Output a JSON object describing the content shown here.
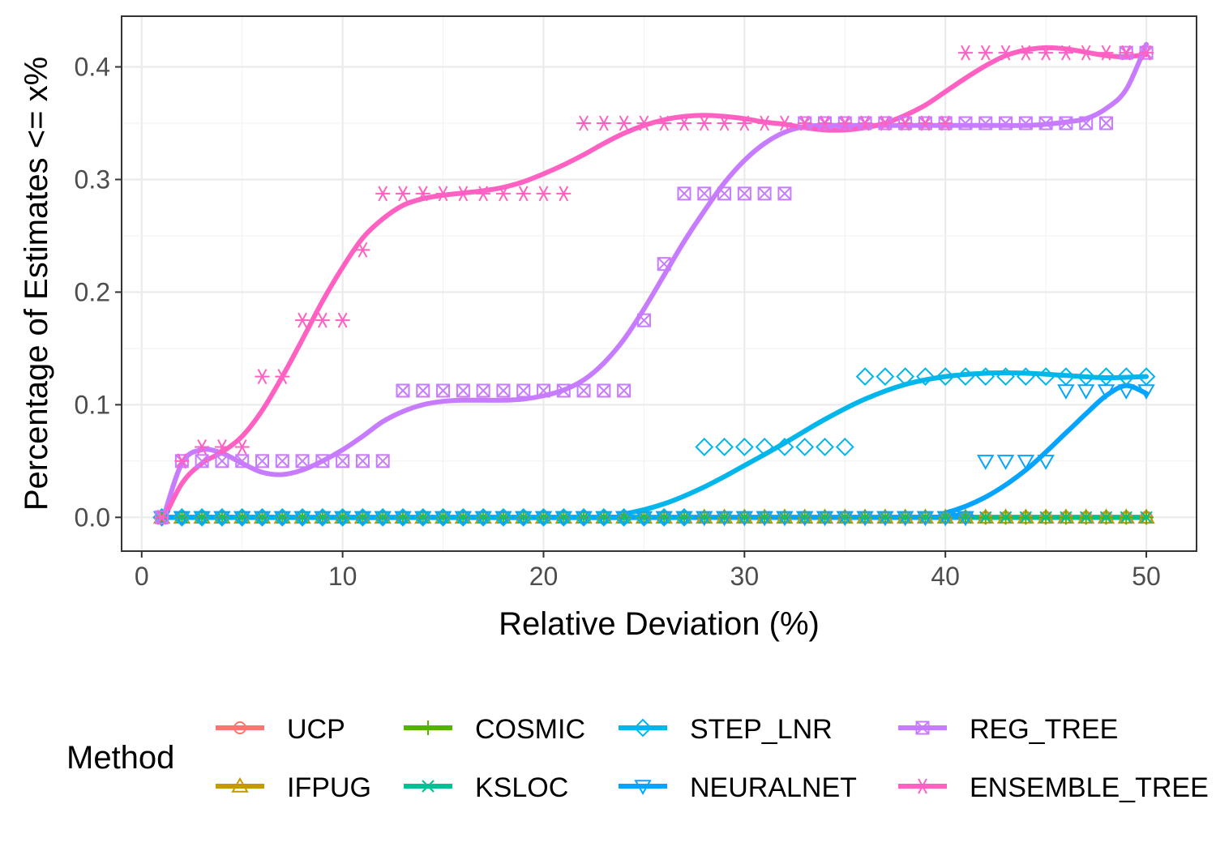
{
  "chart_data": {
    "type": "line",
    "xlabel": "Relative Deviation (%)",
    "ylabel": "Percentage of Estimates <= x%",
    "xlim": [
      -1,
      52.5
    ],
    "ylim": [
      -0.03,
      0.445
    ],
    "x_ticks": [
      0,
      10,
      20,
      30,
      40,
      50
    ],
    "x_tick_labels": [
      "0",
      "10",
      "20",
      "30",
      "40",
      "50"
    ],
    "y_ticks": [
      0.0,
      0.1,
      0.2,
      0.3,
      0.4
    ],
    "y_tick_labels": [
      "0.0",
      "0.1",
      "0.2",
      "0.3",
      "0.4"
    ],
    "grid": true,
    "legend": {
      "title": "Method",
      "position": "bottom"
    },
    "series": [
      {
        "name": "UCP",
        "color": "#F8766D",
        "marker": "circle",
        "points": [
          [
            1,
            0
          ],
          [
            50,
            0
          ]
        ],
        "fill_zero_range": [
          1,
          50
        ],
        "smooth": [
          [
            1,
            0
          ],
          [
            50,
            0
          ]
        ]
      },
      {
        "name": "IFPUG",
        "color": "#C49A00",
        "marker": "triangle-up",
        "points": [],
        "fill_zero_range": [
          1,
          50
        ],
        "smooth": [
          [
            1,
            0
          ],
          [
            50,
            0
          ]
        ]
      },
      {
        "name": "COSMIC",
        "color": "#53B400",
        "marker": "plus",
        "points": [],
        "fill_zero_range": [
          1,
          50
        ],
        "smooth": [
          [
            1,
            0
          ],
          [
            50,
            0
          ]
        ]
      },
      {
        "name": "KSLOC",
        "color": "#00C094",
        "marker": "cross",
        "points": [],
        "fill_zero_range": [
          1,
          50
        ],
        "smooth": [
          [
            1,
            0
          ],
          [
            50,
            0
          ]
        ]
      },
      {
        "name": "STEP_LNR",
        "color": "#00B6EB",
        "marker": "diamond",
        "points": [
          [
            28,
            0.0625
          ],
          [
            29,
            0.0625
          ],
          [
            30,
            0.0625
          ],
          [
            31,
            0.0625
          ],
          [
            32,
            0.0625
          ],
          [
            33,
            0.0625
          ],
          [
            34,
            0.0625
          ],
          [
            35,
            0.0625
          ],
          [
            36,
            0.125
          ],
          [
            37,
            0.125
          ],
          [
            38,
            0.125
          ],
          [
            39,
            0.125
          ],
          [
            40,
            0.125
          ],
          [
            41,
            0.125
          ],
          [
            42,
            0.125
          ],
          [
            43,
            0.125
          ],
          [
            44,
            0.125
          ],
          [
            45,
            0.125
          ],
          [
            46,
            0.125
          ],
          [
            47,
            0.125
          ],
          [
            48,
            0.125
          ],
          [
            49,
            0.125
          ],
          [
            50,
            0.125
          ]
        ],
        "fill_zero_range": [
          1,
          27
        ],
        "smooth": [
          [
            1,
            0
          ],
          [
            22,
            0
          ],
          [
            24,
            0.003
          ],
          [
            26,
            0.012
          ],
          [
            28,
            0.027
          ],
          [
            30,
            0.046
          ],
          [
            32,
            0.066
          ],
          [
            34,
            0.087
          ],
          [
            36,
            0.105
          ],
          [
            38,
            0.118
          ],
          [
            40,
            0.125
          ],
          [
            42,
            0.128
          ],
          [
            44,
            0.128
          ],
          [
            46,
            0.126
          ],
          [
            48,
            0.124
          ],
          [
            50,
            0.125
          ]
        ]
      },
      {
        "name": "NEURALNET",
        "color": "#06A4FF",
        "marker": "triangle-down",
        "points": [
          [
            42,
            0.05
          ],
          [
            43,
            0.05
          ],
          [
            44,
            0.05
          ],
          [
            45,
            0.05
          ],
          [
            46,
            0.1125
          ],
          [
            47,
            0.1125
          ],
          [
            48,
            0.1125
          ],
          [
            49,
            0.1125
          ],
          [
            50,
            0.1125
          ]
        ],
        "fill_zero_range": [
          1,
          41
        ],
        "smooth": [
          [
            1,
            0
          ],
          [
            38,
            0
          ],
          [
            40,
            0.004
          ],
          [
            42,
            0.018
          ],
          [
            44,
            0.042
          ],
          [
            46,
            0.075
          ],
          [
            47,
            0.092
          ],
          [
            48,
            0.108
          ],
          [
            49,
            0.117
          ],
          [
            50,
            0.11
          ]
        ]
      },
      {
        "name": "REG_TREE",
        "color": "#C77CFF",
        "marker": "square-x",
        "points": [
          [
            1,
            0
          ],
          [
            2,
            0.05
          ],
          [
            3,
            0.05
          ],
          [
            4,
            0.05
          ],
          [
            5,
            0.05
          ],
          [
            6,
            0.05
          ],
          [
            7,
            0.05
          ],
          [
            8,
            0.05
          ],
          [
            9,
            0.05
          ],
          [
            10,
            0.05
          ],
          [
            11,
            0.05
          ],
          [
            12,
            0.05
          ],
          [
            13,
            0.1125
          ],
          [
            14,
            0.1125
          ],
          [
            15,
            0.1125
          ],
          [
            16,
            0.1125
          ],
          [
            17,
            0.1125
          ],
          [
            18,
            0.1125
          ],
          [
            19,
            0.1125
          ],
          [
            20,
            0.1125
          ],
          [
            21,
            0.1125
          ],
          [
            22,
            0.1125
          ],
          [
            23,
            0.1125
          ],
          [
            24,
            0.1125
          ],
          [
            25,
            0.175
          ],
          [
            26,
            0.225
          ],
          [
            27,
            0.2875
          ],
          [
            28,
            0.2875
          ],
          [
            29,
            0.2875
          ],
          [
            30,
            0.2875
          ],
          [
            31,
            0.2875
          ],
          [
            32,
            0.2875
          ],
          [
            33,
            0.35
          ],
          [
            34,
            0.35
          ],
          [
            35,
            0.35
          ],
          [
            36,
            0.35
          ],
          [
            37,
            0.35
          ],
          [
            38,
            0.35
          ],
          [
            39,
            0.35
          ],
          [
            40,
            0.35
          ],
          [
            41,
            0.35
          ],
          [
            42,
            0.35
          ],
          [
            43,
            0.35
          ],
          [
            44,
            0.35
          ],
          [
            45,
            0.35
          ],
          [
            46,
            0.35
          ],
          [
            47,
            0.35
          ],
          [
            48,
            0.35
          ],
          [
            49,
            0.4125
          ],
          [
            50,
            0.4125
          ]
        ],
        "smooth": [
          [
            1,
            -0.005
          ],
          [
            2,
            0.048
          ],
          [
            3,
            0.06
          ],
          [
            4,
            0.057
          ],
          [
            5,
            0.048
          ],
          [
            6,
            0.04
          ],
          [
            7,
            0.038
          ],
          [
            8,
            0.042
          ],
          [
            9,
            0.05
          ],
          [
            10,
            0.06
          ],
          [
            11,
            0.072
          ],
          [
            12,
            0.085
          ],
          [
            13,
            0.094
          ],
          [
            14,
            0.1
          ],
          [
            15,
            0.103
          ],
          [
            16,
            0.104
          ],
          [
            17,
            0.104
          ],
          [
            18,
            0.104
          ],
          [
            19,
            0.105
          ],
          [
            20,
            0.108
          ],
          [
            21,
            0.113
          ],
          [
            22,
            0.122
          ],
          [
            23,
            0.137
          ],
          [
            24,
            0.158
          ],
          [
            25,
            0.185
          ],
          [
            26,
            0.215
          ],
          [
            27,
            0.245
          ],
          [
            28,
            0.272
          ],
          [
            29,
            0.297
          ],
          [
            30,
            0.317
          ],
          [
            31,
            0.332
          ],
          [
            32,
            0.342
          ],
          [
            33,
            0.347
          ],
          [
            34,
            0.348
          ],
          [
            35,
            0.348
          ],
          [
            36,
            0.348
          ],
          [
            37,
            0.348
          ],
          [
            38,
            0.348
          ],
          [
            39,
            0.348
          ],
          [
            40,
            0.348
          ],
          [
            41,
            0.348
          ],
          [
            42,
            0.348
          ],
          [
            43,
            0.348
          ],
          [
            44,
            0.348
          ],
          [
            45,
            0.349
          ],
          [
            46,
            0.351
          ],
          [
            47,
            0.354
          ],
          [
            48,
            0.363
          ],
          [
            49,
            0.38
          ],
          [
            50,
            0.42
          ]
        ]
      },
      {
        "name": "ENSEMBLE_TREE",
        "color": "#FF61C3",
        "marker": "asterisk",
        "points": [
          [
            1,
            0
          ],
          [
            2,
            0.05
          ],
          [
            3,
            0.0625
          ],
          [
            4,
            0.0625
          ],
          [
            5,
            0.0625
          ],
          [
            6,
            0.125
          ],
          [
            7,
            0.125
          ],
          [
            8,
            0.175
          ],
          [
            9,
            0.175
          ],
          [
            10,
            0.175
          ],
          [
            11,
            0.2375
          ],
          [
            12,
            0.2875
          ],
          [
            13,
            0.2875
          ],
          [
            14,
            0.2875
          ],
          [
            15,
            0.2875
          ],
          [
            16,
            0.2875
          ],
          [
            17,
            0.2875
          ],
          [
            18,
            0.2875
          ],
          [
            19,
            0.2875
          ],
          [
            20,
            0.2875
          ],
          [
            21,
            0.2875
          ],
          [
            22,
            0.35
          ],
          [
            23,
            0.35
          ],
          [
            24,
            0.35
          ],
          [
            25,
            0.35
          ],
          [
            26,
            0.35
          ],
          [
            27,
            0.35
          ],
          [
            28,
            0.35
          ],
          [
            29,
            0.35
          ],
          [
            30,
            0.35
          ],
          [
            31,
            0.35
          ],
          [
            32,
            0.35
          ],
          [
            33,
            0.35
          ],
          [
            34,
            0.35
          ],
          [
            35,
            0.35
          ],
          [
            36,
            0.35
          ],
          [
            37,
            0.35
          ],
          [
            38,
            0.35
          ],
          [
            39,
            0.35
          ],
          [
            40,
            0.35
          ],
          [
            41,
            0.4125
          ],
          [
            42,
            0.4125
          ],
          [
            43,
            0.4125
          ],
          [
            44,
            0.4125
          ],
          [
            45,
            0.4125
          ],
          [
            46,
            0.4125
          ],
          [
            47,
            0.4125
          ],
          [
            48,
            0.4125
          ],
          [
            49,
            0.4125
          ],
          [
            50,
            0.4125
          ]
        ],
        "smooth": [
          [
            1,
            -0.005
          ],
          [
            2,
            0.03
          ],
          [
            3,
            0.048
          ],
          [
            4,
            0.058
          ],
          [
            5,
            0.072
          ],
          [
            6,
            0.095
          ],
          [
            7,
            0.125
          ],
          [
            8,
            0.158
          ],
          [
            9,
            0.192
          ],
          [
            10,
            0.222
          ],
          [
            11,
            0.248
          ],
          [
            12,
            0.265
          ],
          [
            13,
            0.277
          ],
          [
            14,
            0.283
          ],
          [
            15,
            0.286
          ],
          [
            16,
            0.288
          ],
          [
            17,
            0.29
          ],
          [
            18,
            0.293
          ],
          [
            19,
            0.298
          ],
          [
            20,
            0.305
          ],
          [
            21,
            0.313
          ],
          [
            22,
            0.322
          ],
          [
            23,
            0.332
          ],
          [
            24,
            0.341
          ],
          [
            25,
            0.348
          ],
          [
            26,
            0.353
          ],
          [
            27,
            0.356
          ],
          [
            28,
            0.357
          ],
          [
            29,
            0.356
          ],
          [
            30,
            0.354
          ],
          [
            31,
            0.351
          ],
          [
            32,
            0.349
          ],
          [
            33,
            0.346
          ],
          [
            34,
            0.344
          ],
          [
            35,
            0.344
          ],
          [
            36,
            0.346
          ],
          [
            37,
            0.35
          ],
          [
            38,
            0.357
          ],
          [
            39,
            0.366
          ],
          [
            40,
            0.378
          ],
          [
            41,
            0.39
          ],
          [
            42,
            0.401
          ],
          [
            43,
            0.41
          ],
          [
            44,
            0.415
          ],
          [
            45,
            0.417
          ],
          [
            46,
            0.416
          ],
          [
            47,
            0.413
          ],
          [
            48,
            0.41
          ],
          [
            49,
            0.409
          ],
          [
            50,
            0.411
          ]
        ]
      }
    ]
  }
}
